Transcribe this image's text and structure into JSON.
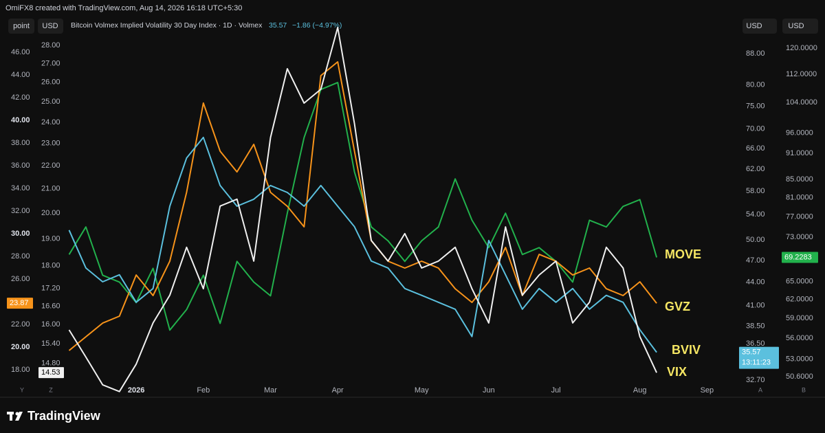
{
  "chart_data": {
    "type": "line",
    "watermark": "OmiFX8 created with TradingView.com, Aug 14, 2026 16:18 UTC+5:30",
    "title": "Bitcoin Volmex Implied Volatility 30 Day Index · 1D · Volmex",
    "last_price": "35.57",
    "change": "−1.86 (−4.97%)",
    "buttons": [
      "point",
      "USD",
      "USD",
      "USD"
    ],
    "brand": "TradingView",
    "axis_letters": [
      "Y",
      "Z",
      "A",
      "B"
    ],
    "countdown": "13:11:23",
    "categories": [
      null,
      null,
      null,
      null,
      null,
      null,
      null,
      "2026",
      null,
      null,
      null,
      "Feb",
      null,
      null,
      null,
      "Mar",
      null,
      null,
      null,
      "Apr",
      null,
      null,
      null,
      null,
      "May",
      null,
      null,
      null,
      "Jun",
      null,
      null,
      null,
      "Jul",
      null,
      null,
      null,
      null,
      "Aug",
      null,
      null,
      null,
      "Sep",
      null
    ],
    "ylim": [
      15.58,
      49.27
    ],
    "yticks": [
      {
        "value": 18,
        "label": "18.00"
      },
      {
        "value": 20,
        "label": "20.00"
      },
      {
        "value": 22,
        "label": "22.00"
      },
      {
        "value": 24,
        "label": "24.00"
      },
      {
        "value": 26,
        "label": "26.00"
      },
      {
        "value": 28,
        "label": "28.00"
      },
      {
        "value": 30,
        "label": "30.00"
      },
      {
        "value": 32,
        "label": "32.00"
      },
      {
        "value": 34,
        "label": "34.00"
      },
      {
        "value": 36,
        "label": "36.00"
      },
      {
        "value": 38,
        "label": "38.00"
      },
      {
        "value": 40,
        "label": "40.00"
      },
      {
        "value": 42,
        "label": "42.00"
      },
      {
        "value": 44,
        "label": "44.00"
      },
      {
        "value": 46,
        "label": "46.00"
      }
    ],
    "ylog": false,
    "y2lim": [
      13.83,
      29.75
    ],
    "y2ticks": [
      {
        "value": 14.8,
        "label": "14.80"
      },
      {
        "value": 15.4,
        "label": "15.40"
      },
      {
        "value": 16,
        "label": "16.00"
      },
      {
        "value": 16.6,
        "label": "16.60"
      },
      {
        "value": 17.2,
        "label": "17.20"
      },
      {
        "value": 18,
        "label": "18.00"
      },
      {
        "value": 19,
        "label": "19.00"
      },
      {
        "value": 20,
        "label": "20.00"
      },
      {
        "value": 21,
        "label": "21.00"
      },
      {
        "value": 22,
        "label": "22.00"
      },
      {
        "value": 23,
        "label": "23.00"
      },
      {
        "value": 24,
        "label": "24.00"
      },
      {
        "value": 25,
        "label": "25.00"
      },
      {
        "value": 26,
        "label": "26.00"
      },
      {
        "value": 27,
        "label": "27.00"
      },
      {
        "value": 28,
        "label": "28.00"
      }
    ],
    "y2log": true,
    "y3lim": [
      31.04,
      98.9
    ],
    "y3ticks": [
      {
        "value": 32.7,
        "label": "32.70"
      },
      {
        "value": 36.5,
        "label": "36.50"
      },
      {
        "value": 38.5,
        "label": "38.50"
      },
      {
        "value": 41,
        "label": "41.00"
      },
      {
        "value": 44,
        "label": "44.00"
      },
      {
        "value": 47,
        "label": "47.00"
      },
      {
        "value": 50,
        "label": "50.00"
      },
      {
        "value": 54,
        "label": "54.00"
      },
      {
        "value": 58,
        "label": "58.00"
      },
      {
        "value": 62,
        "label": "62.00"
      },
      {
        "value": 66,
        "label": "66.00"
      },
      {
        "value": 70,
        "label": "70.00"
      },
      {
        "value": 75,
        "label": "75.00"
      },
      {
        "value": 80,
        "label": "80.00"
      },
      {
        "value": 88,
        "label": "88.00"
      }
    ],
    "y3log": true,
    "y4lim": [
      47.93,
      130.9
    ],
    "y4ticks": [
      {
        "value": 50.6,
        "label": "50.6000"
      },
      {
        "value": 53,
        "label": "53.0000"
      },
      {
        "value": 56,
        "label": "56.0000"
      },
      {
        "value": 59,
        "label": "59.0000"
      },
      {
        "value": 62,
        "label": "62.0000"
      },
      {
        "value": 65,
        "label": "65.0000"
      },
      {
        "value": 73,
        "label": "73.0000"
      },
      {
        "value": 77,
        "label": "77.0000"
      },
      {
        "value": 81,
        "label": "81.0000"
      },
      {
        "value": 85,
        "label": "85.0000"
      },
      {
        "value": 91,
        "label": "91.0000"
      },
      {
        "value": 96,
        "label": "96.0000"
      },
      {
        "value": 104,
        "label": "104.0000"
      },
      {
        "value": 112,
        "label": "112.0000"
      },
      {
        "value": 120,
        "label": "120.0000"
      }
    ],
    "y4log": true,
    "series": [
      {
        "name": "MOVE",
        "color": "#22b14c",
        "axis": "y4",
        "last_label": "69.2283",
        "values": [
          null,
          null,
          null,
          69.76,
          75.0,
          66.07,
          64.88,
          61.47,
          67.27,
          57.18,
          60.36,
          66.07,
          58.21,
          68.51,
          64.88,
          62.58,
          77.76,
          94.86,
          107.66,
          109.63,
          86.67,
          75.0,
          72.32,
          68.51,
          72.32,
          75.0,
          85.1,
          76.34,
          71.03,
          77.76,
          69.76,
          71.03,
          68.51,
          64.88,
          76.34,
          75.0,
          79.16,
          80.6,
          69.2283,
          null,
          null,
          null,
          null
        ]
      },
      {
        "name": "GVZ",
        "color": "#f7931a",
        "axis": "y",
        "last_label": "23.87",
        "values": [
          null,
          null,
          null,
          19.7,
          20.91,
          22.12,
          22.73,
          26.36,
          24.55,
          27.58,
          33.64,
          41.52,
          37.27,
          35.45,
          37.88,
          33.64,
          32.42,
          30.61,
          43.94,
          45.15,
          37.27,
          29.39,
          27.58,
          26.97,
          27.58,
          26.97,
          25.15,
          23.94,
          25.76,
          28.79,
          24.55,
          28.18,
          27.58,
          26.36,
          26.97,
          25.15,
          24.55,
          25.76,
          23.87,
          null,
          null,
          null,
          null
        ]
      },
      {
        "name": "BVIV",
        "color": "#5bc0de",
        "axis": "y3",
        "last_label": "35.57",
        "values": [
          null,
          null,
          null,
          51.53,
          45.94,
          44.05,
          45.0,
          41.4,
          43.16,
          55.41,
          64.12,
          68.26,
          58.99,
          55.41,
          56.58,
          58.99,
          57.77,
          55.41,
          58.99,
          55.41,
          52.06,
          46.92,
          45.94,
          43.16,
          42.28,
          41.4,
          40.54,
          37.31,
          49.93,
          45.0,
          40.54,
          43.16,
          41.4,
          43.16,
          40.54,
          42.28,
          41.4,
          38.09,
          35.57,
          null,
          null,
          null,
          null
        ]
      },
      {
        "name": "VIX",
        "color": "#f0f0f0",
        "axis": "y2",
        "last_label": "14.53",
        "values": [
          null,
          null,
          null,
          15.83,
          14.99,
          14.18,
          13.99,
          14.78,
          16.05,
          16.97,
          18.68,
          17.19,
          20.29,
          20.57,
          18.17,
          23.28,
          26.72,
          24.94,
          25.64,
          29.02,
          23.93,
          18.94,
          18.17,
          19.2,
          17.92,
          18.17,
          18.68,
          17.19,
          16.05,
          19.46,
          16.97,
          17.67,
          18.17,
          16.05,
          16.73,
          18.68,
          17.92,
          15.62,
          14.53,
          null,
          null,
          null,
          null
        ]
      }
    ]
  }
}
